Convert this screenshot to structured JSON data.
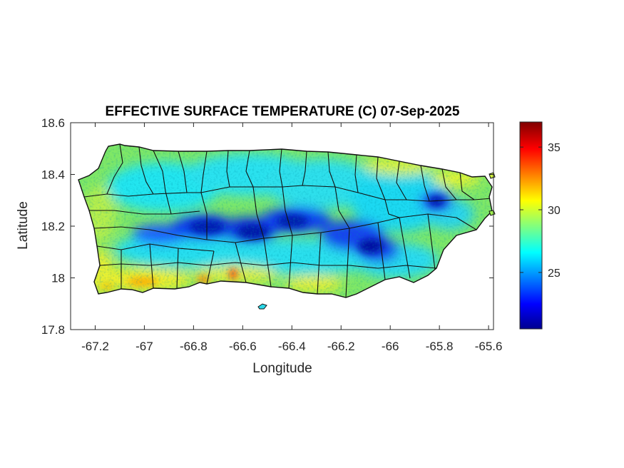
{
  "map": {
    "title": "EFFECTIVE SURFACE TEMPERATURE (C) 07-Sep-2025",
    "xlabel": "Longitude",
    "ylabel": "Latitude",
    "region_shown": "Puerto Rico with municipality boundaries",
    "xlim": [
      -67.3,
      -65.58
    ],
    "ylim": [
      17.8,
      18.6
    ],
    "x_ticks": [
      {
        "value": -67.2,
        "label": "-67.2"
      },
      {
        "value": -67.0,
        "label": "-67"
      },
      {
        "value": -66.8,
        "label": "-66.8"
      },
      {
        "value": -66.6,
        "label": "-66.6"
      },
      {
        "value": -66.4,
        "label": "-66.4"
      },
      {
        "value": -66.2,
        "label": "-66.2"
      },
      {
        "value": -66.0,
        "label": "-66"
      },
      {
        "value": -65.8,
        "label": "-65.8"
      },
      {
        "value": -65.6,
        "label": "-65.6"
      }
    ],
    "y_ticks": [
      {
        "value": 18.6,
        "label": "18.6"
      },
      {
        "value": 18.4,
        "label": "18.4"
      },
      {
        "value": 18.2,
        "label": "18.2"
      },
      {
        "value": 18.0,
        "label": "18"
      },
      {
        "value": 17.8,
        "label": "17.8"
      }
    ],
    "colorbar": {
      "colormap": "jet",
      "range": [
        20.5,
        37
      ],
      "ticks": [
        {
          "value": 25,
          "label": "25"
        },
        {
          "value": 30,
          "label": "30"
        },
        {
          "value": 35,
          "label": "35"
        }
      ]
    },
    "colors": {
      "outline": "#111111",
      "axes_edge": "#262626",
      "background": "#ffffff"
    }
  }
}
